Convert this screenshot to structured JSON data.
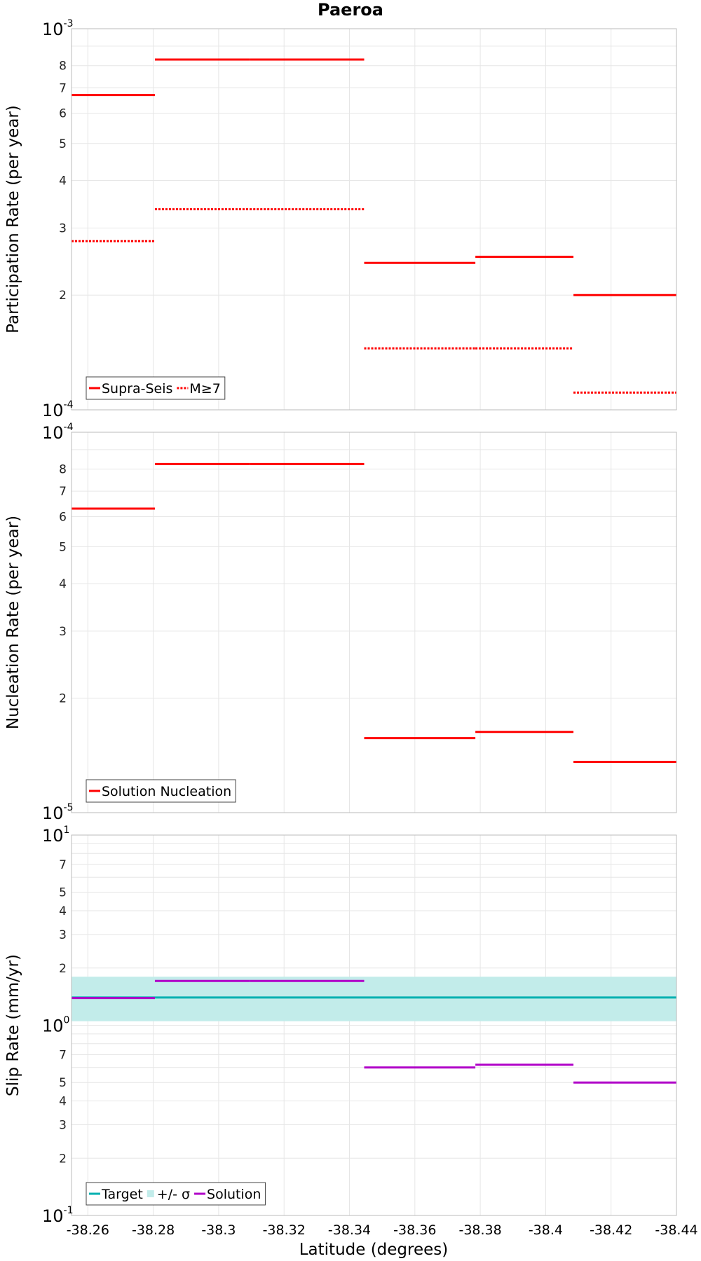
{
  "chart_data": {
    "title": "Paeroa",
    "x_axis": {
      "label": "Latitude (degrees)",
      "xlim": [
        -38.255,
        -38.44
      ],
      "ticks": [
        -38.26,
        -38.28,
        -38.3,
        -38.32,
        -38.34,
        -38.36,
        -38.38,
        -38.4,
        -38.42,
        -38.44
      ],
      "tick_labels": [
        "-38.26",
        "-38.28",
        "-38.3",
        "-38.32",
        "-38.34",
        "-38.36",
        "-38.38",
        "-38.4",
        "-38.42",
        "-38.44"
      ],
      "grid": true
    },
    "panels": [
      {
        "type": "line",
        "ylabel": "Participation Rate (per year)",
        "yscale": "log",
        "ylim": [
          0.0001,
          0.001
        ],
        "decade_labels": [
          {
            "value": 0.0001,
            "base": "10",
            "exp": "-4"
          },
          {
            "value": 0.001,
            "base": "10",
            "exp": "-3"
          }
        ],
        "minor_tick_labels": [
          {
            "value": 0.0002,
            "label": "2"
          },
          {
            "value": 0.0003,
            "label": "3"
          },
          {
            "value": 0.0004,
            "label": "4"
          },
          {
            "value": 0.0005,
            "label": "5"
          },
          {
            "value": 0.0006,
            "label": "6"
          },
          {
            "value": 0.0007,
            "label": "7"
          },
          {
            "value": 0.0008,
            "label": "8"
          }
        ],
        "legend": {
          "position": "bottom-left"
        },
        "series": [
          {
            "name": "Supra-Seis",
            "color": "#ff0000",
            "style": "solid",
            "segments": [
              {
                "x": [
                  -38.255,
                  -38.2805
                ],
                "y": 0.00067
              },
              {
                "x": [
                  -38.2805,
                  -38.3095
                ],
                "y": 0.00083
              },
              {
                "x": [
                  -38.3095,
                  -38.3445
                ],
                "y": 0.00083
              },
              {
                "x": [
                  -38.3445,
                  -38.3785
                ],
                "y": 0.000243
              },
              {
                "x": [
                  -38.3785,
                  -38.4085
                ],
                "y": 0.000252
              },
              {
                "x": [
                  -38.4085,
                  -38.44
                ],
                "y": 0.0002
              }
            ]
          },
          {
            "name": "M≥7",
            "color": "#ff0000",
            "style": "dotted",
            "segments": [
              {
                "x": [
                  -38.255,
                  -38.2805
                ],
                "y": 0.000277
              },
              {
                "x": [
                  -38.2805,
                  -38.3095
                ],
                "y": 0.000336
              },
              {
                "x": [
                  -38.3095,
                  -38.3445
                ],
                "y": 0.000336
              },
              {
                "x": [
                  -38.3445,
                  -38.3785
                ],
                "y": 0.000145
              },
              {
                "x": [
                  -38.3785,
                  -38.4085
                ],
                "y": 0.000145
              },
              {
                "x": [
                  -38.4085,
                  -38.44
                ],
                "y": 0.000111
              }
            ]
          }
        ]
      },
      {
        "type": "line",
        "ylabel": "Nucleation Rate (per year)",
        "yscale": "log",
        "ylim": [
          1e-05,
          0.0001
        ],
        "decade_labels": [
          {
            "value": 1e-05,
            "base": "10",
            "exp": "-5"
          },
          {
            "value": 0.0001,
            "base": "10",
            "exp": "-4"
          }
        ],
        "minor_tick_labels": [
          {
            "value": 2e-05,
            "label": "2"
          },
          {
            "value": 3e-05,
            "label": "3"
          },
          {
            "value": 4e-05,
            "label": "4"
          },
          {
            "value": 5e-05,
            "label": "5"
          },
          {
            "value": 6e-05,
            "label": "6"
          },
          {
            "value": 7e-05,
            "label": "7"
          },
          {
            "value": 8e-05,
            "label": "8"
          }
        ],
        "legend": {
          "position": "bottom-left"
        },
        "series": [
          {
            "name": "Solution Nucleation",
            "color": "#ff0000",
            "style": "solid",
            "segments": [
              {
                "x": [
                  -38.255,
                  -38.2805
                ],
                "y": 6.3e-05
              },
              {
                "x": [
                  -38.2805,
                  -38.3095
                ],
                "y": 8.25e-05
              },
              {
                "x": [
                  -38.3095,
                  -38.3445
                ],
                "y": 8.25e-05
              },
              {
                "x": [
                  -38.3445,
                  -38.3785
                ],
                "y": 1.57e-05
              },
              {
                "x": [
                  -38.3785,
                  -38.4085
                ],
                "y": 1.63e-05
              },
              {
                "x": [
                  -38.4085,
                  -38.44
                ],
                "y": 1.36e-05
              }
            ]
          }
        ]
      },
      {
        "type": "line",
        "ylabel": "Slip Rate (mm/yr)",
        "yscale": "log",
        "ylim": [
          0.1,
          10
        ],
        "decade_labels": [
          {
            "value": 0.1,
            "base": "10",
            "exp": "-1"
          },
          {
            "value": 1,
            "base": "10",
            "exp": "0"
          },
          {
            "value": 10,
            "base": "10",
            "exp": "1"
          }
        ],
        "minor_tick_labels": [
          {
            "value": 0.2,
            "label": "2"
          },
          {
            "value": 0.3,
            "label": "3"
          },
          {
            "value": 0.4,
            "label": "4"
          },
          {
            "value": 0.5,
            "label": "5"
          },
          {
            "value": 0.7,
            "label": "7"
          },
          {
            "value": 2,
            "label": "2"
          },
          {
            "value": 3,
            "label": "3"
          },
          {
            "value": 4,
            "label": "4"
          },
          {
            "value": 5,
            "label": "5"
          },
          {
            "value": 7,
            "label": "7"
          }
        ],
        "legend": {
          "position": "bottom-left"
        },
        "band": {
          "name": "+/- σ",
          "color": "#c2ecea",
          "y_low": 1.05,
          "y_high": 1.8
        },
        "series": [
          {
            "name": "Target",
            "color": "#00b0b0",
            "style": "solid",
            "segments": [
              {
                "x": [
                  -38.255,
                  -38.44
                ],
                "y": 1.4
              }
            ]
          },
          {
            "name": "Solution",
            "color": "#b000c8",
            "style": "solid",
            "segments": [
              {
                "x": [
                  -38.255,
                  -38.2805
                ],
                "y": 1.39
              },
              {
                "x": [
                  -38.2805,
                  -38.3095
                ],
                "y": 1.71
              },
              {
                "x": [
                  -38.3095,
                  -38.3445
                ],
                "y": 1.71
              },
              {
                "x": [
                  -38.3445,
                  -38.3785
                ],
                "y": 0.6
              },
              {
                "x": [
                  -38.3785,
                  -38.4085
                ],
                "y": 0.62
              },
              {
                "x": [
                  -38.4085,
                  -38.44
                ],
                "y": 0.5
              }
            ]
          }
        ]
      }
    ]
  }
}
